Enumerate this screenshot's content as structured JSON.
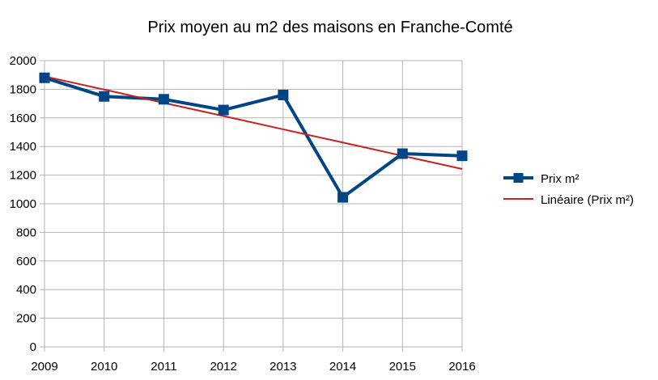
{
  "chart_data": {
    "type": "line",
    "title": "Prix moyen au m2 des maisons en Franche-Comté",
    "xlabel": "",
    "ylabel": "",
    "x": [
      "2009",
      "2010",
      "2011",
      "2012",
      "2013",
      "2014",
      "2015",
      "2016"
    ],
    "ylim": [
      0,
      2000
    ],
    "yticks": [
      "0",
      "200",
      "400",
      "600",
      "800",
      "1000",
      "1200",
      "1400",
      "1600",
      "1800",
      "2000"
    ],
    "grid": true,
    "legend_position": "right",
    "series": [
      {
        "name": "Prix m²",
        "values": [
          1880,
          1750,
          1730,
          1655,
          1760,
          1045,
          1350,
          1335
        ],
        "color": "#004586",
        "marker": "square"
      },
      {
        "name": "Linéaire (Prix m²)",
        "trendline_of": 0,
        "values": [
          1890,
          1798,
          1705,
          1613,
          1520,
          1428,
          1335,
          1243
        ],
        "color": "#c9211e",
        "marker": "none"
      }
    ]
  }
}
